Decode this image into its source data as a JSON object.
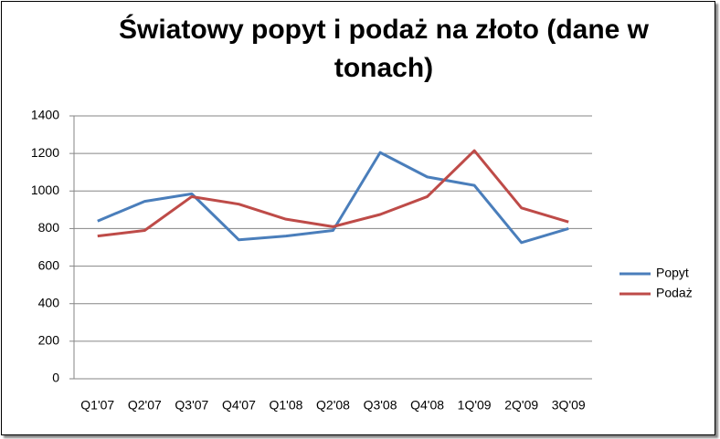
{
  "chart_data": {
    "type": "line",
    "title": "Światowy popyt i podaż na złoto (dane w tonach)",
    "categories": [
      "Q1'07",
      "Q2'07",
      "Q3'07",
      "Q4'07",
      "Q1'08",
      "Q2'08",
      "Q3'08",
      "Q4'08",
      "1Q'09",
      "2Q'09",
      "3Q'09"
    ],
    "series": [
      {
        "name": "Popyt",
        "color": "#4a7ebb",
        "values": [
          840,
          945,
          985,
          740,
          760,
          790,
          1205,
          1075,
          1030,
          725,
          800
        ]
      },
      {
        "name": "Podaż",
        "color": "#be4b48",
        "values": [
          760,
          790,
          970,
          930,
          850,
          810,
          875,
          970,
          1215,
          910,
          835
        ]
      }
    ],
    "ylim": [
      0,
      1400
    ],
    "yticks": [
      0,
      200,
      400,
      600,
      800,
      1000,
      1200,
      1400
    ],
    "grid": true,
    "legend": "right"
  }
}
